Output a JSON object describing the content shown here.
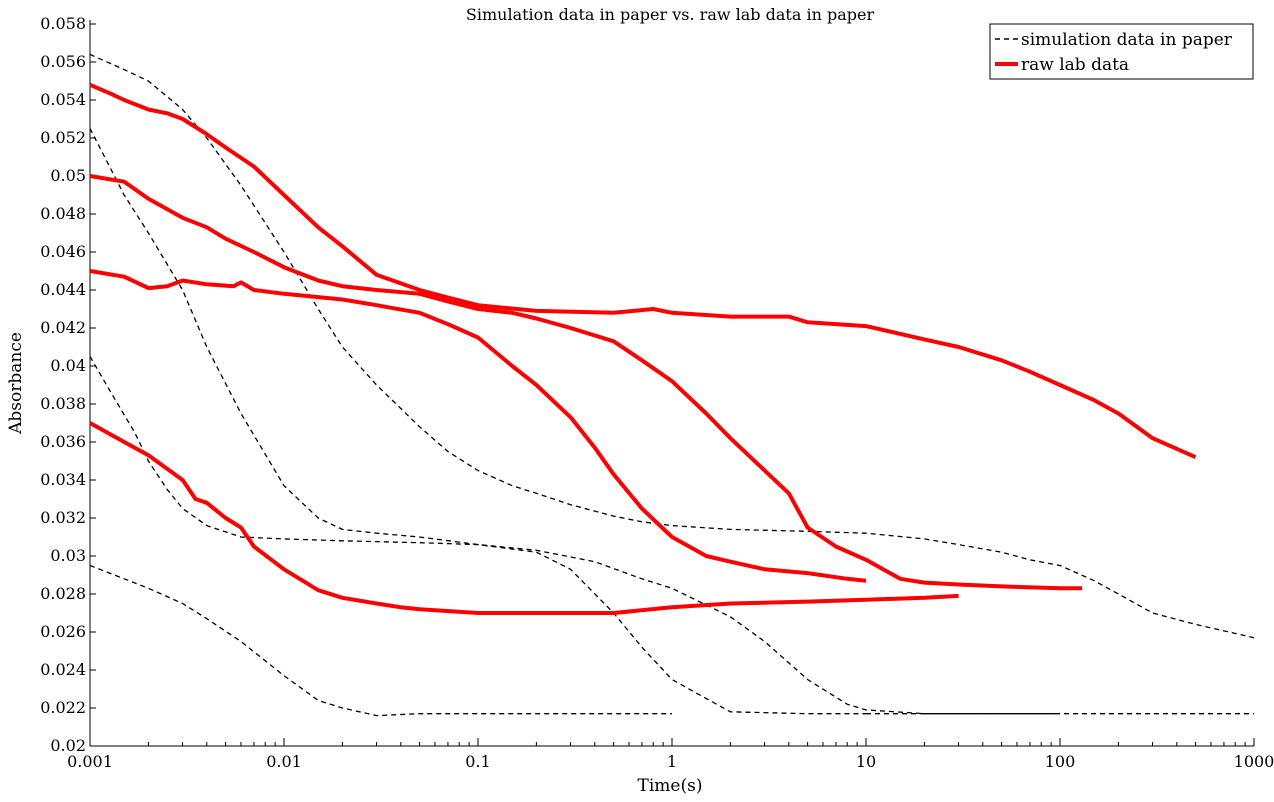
{
  "chart_data": {
    "type": "line",
    "title": "Simulation data in paper vs. raw lab data in paper",
    "xlabel": "Time(s)",
    "ylabel": "Absorbance",
    "xscale": "log",
    "xlim": [
      0.001,
      1000
    ],
    "ylim": [
      0.02,
      0.058
    ],
    "x_tick_labels": [
      "0.001",
      "0.01",
      "0.1",
      "1",
      "10",
      "100",
      "1000"
    ],
    "y_tick_labels": [
      "0.02",
      "0.022",
      "0.024",
      "0.026",
      "0.028",
      "0.03",
      "0.032",
      "0.034",
      "0.036",
      "0.038",
      "0.04",
      "0.042",
      "0.044",
      "0.046",
      "0.048",
      "0.05",
      "0.052",
      "0.054",
      "0.056",
      "0.058"
    ],
    "grid": false,
    "legend_position": "top-right",
    "legend": [
      {
        "label": "simulation data in paper",
        "style": "dashed",
        "color": "#000000"
      },
      {
        "label": "raw lab data",
        "style": "solid",
        "color": "#ff0000"
      }
    ],
    "series": [
      {
        "group": "simulation data in paper",
        "color": "#000000",
        "style": "dashed",
        "points": [
          [
            0.001,
            0.0295
          ],
          [
            0.0015,
            0.0288
          ],
          [
            0.002,
            0.0283
          ],
          [
            0.003,
            0.0275
          ],
          [
            0.004,
            0.0267
          ],
          [
            0.006,
            0.0255
          ],
          [
            0.01,
            0.0237
          ],
          [
            0.015,
            0.0224
          ],
          [
            0.02,
            0.022
          ],
          [
            0.03,
            0.0216
          ],
          [
            0.05,
            0.0217
          ],
          [
            0.1,
            0.0217
          ],
          [
            0.5,
            0.0217
          ],
          [
            1,
            0.0217
          ]
        ]
      },
      {
        "group": "simulation data in paper",
        "color": "#000000",
        "style": "dashed",
        "points": [
          [
            0.001,
            0.0405
          ],
          [
            0.0013,
            0.0385
          ],
          [
            0.0017,
            0.0365
          ],
          [
            0.002,
            0.035
          ],
          [
            0.0025,
            0.0335
          ],
          [
            0.003,
            0.0325
          ],
          [
            0.004,
            0.0316
          ],
          [
            0.006,
            0.031
          ],
          [
            0.01,
            0.0309
          ],
          [
            0.02,
            0.0308
          ],
          [
            0.05,
            0.0307
          ],
          [
            0.1,
            0.0306
          ],
          [
            0.2,
            0.0302
          ],
          [
            0.3,
            0.0293
          ],
          [
            0.5,
            0.027
          ],
          [
            0.7,
            0.0252
          ],
          [
            1,
            0.0235
          ],
          [
            1.5,
            0.0225
          ],
          [
            2,
            0.0218
          ],
          [
            5,
            0.0217
          ],
          [
            10,
            0.0217
          ]
        ]
      },
      {
        "group": "simulation data in paper",
        "color": "#000000",
        "style": "dashed",
        "points": [
          [
            0.001,
            0.0525
          ],
          [
            0.0015,
            0.049
          ],
          [
            0.002,
            0.047
          ],
          [
            0.003,
            0.044
          ],
          [
            0.004,
            0.041
          ],
          [
            0.006,
            0.0375
          ],
          [
            0.01,
            0.0337
          ],
          [
            0.015,
            0.032
          ],
          [
            0.02,
            0.0314
          ],
          [
            0.03,
            0.0312
          ],
          [
            0.05,
            0.031
          ],
          [
            0.1,
            0.0306
          ],
          [
            0.2,
            0.0303
          ],
          [
            0.4,
            0.0297
          ],
          [
            0.7,
            0.0288
          ],
          [
            1,
            0.0283
          ],
          [
            2,
            0.0268
          ],
          [
            3,
            0.0255
          ],
          [
            5,
            0.0235
          ],
          [
            8,
            0.0222
          ],
          [
            10,
            0.0219
          ],
          [
            20,
            0.0217
          ],
          [
            50,
            0.0217
          ],
          [
            100,
            0.0217
          ]
        ]
      },
      {
        "group": "simulation data in paper",
        "color": "#000000",
        "style": "dashed",
        "points": [
          [
            0.001,
            0.0564
          ],
          [
            0.0015,
            0.0556
          ],
          [
            0.002,
            0.055
          ],
          [
            0.003,
            0.0535
          ],
          [
            0.004,
            0.052
          ],
          [
            0.006,
            0.0495
          ],
          [
            0.01,
            0.046
          ],
          [
            0.015,
            0.043
          ],
          [
            0.02,
            0.041
          ],
          [
            0.03,
            0.039
          ],
          [
            0.05,
            0.0368
          ],
          [
            0.07,
            0.0355
          ],
          [
            0.1,
            0.0345
          ],
          [
            0.15,
            0.0337
          ],
          [
            0.2,
            0.0333
          ],
          [
            0.3,
            0.0327
          ],
          [
            0.5,
            0.0321
          ],
          [
            0.7,
            0.0318
          ],
          [
            1,
            0.0316
          ],
          [
            2,
            0.0314
          ],
          [
            5,
            0.0313
          ],
          [
            10,
            0.0312
          ],
          [
            20,
            0.0309
          ],
          [
            30,
            0.0306
          ],
          [
            50,
            0.0302
          ],
          [
            70,
            0.0298
          ],
          [
            100,
            0.0295
          ],
          [
            150,
            0.0287
          ],
          [
            200,
            0.028
          ],
          [
            300,
            0.027
          ],
          [
            500,
            0.0264
          ],
          [
            1000,
            0.0257
          ]
        ]
      },
      {
        "group": "simulation data in paper",
        "color": "#000000",
        "style": "dashed",
        "points": [
          [
            10,
            0.0217
          ],
          [
            100,
            0.0217
          ],
          [
            1000,
            0.0217
          ]
        ]
      },
      {
        "group": "raw lab data",
        "color": "#ff0000",
        "style": "solid",
        "points": [
          [
            0.001,
            0.037
          ],
          [
            0.0015,
            0.036
          ],
          [
            0.002,
            0.0353
          ],
          [
            0.003,
            0.034
          ],
          [
            0.0035,
            0.033
          ],
          [
            0.004,
            0.0328
          ],
          [
            0.005,
            0.032
          ],
          [
            0.006,
            0.0315
          ],
          [
            0.007,
            0.0305
          ],
          [
            0.01,
            0.0293
          ],
          [
            0.015,
            0.0282
          ],
          [
            0.02,
            0.0278
          ],
          [
            0.03,
            0.0275
          ],
          [
            0.04,
            0.0273
          ],
          [
            0.05,
            0.0272
          ],
          [
            0.1,
            0.027
          ],
          [
            0.2,
            0.027
          ],
          [
            0.5,
            0.027
          ],
          [
            1,
            0.0273
          ],
          [
            2,
            0.0275
          ],
          [
            5,
            0.0276
          ],
          [
            10,
            0.0277
          ],
          [
            20,
            0.0278
          ],
          [
            30,
            0.0279
          ]
        ]
      },
      {
        "group": "raw lab data",
        "color": "#ff0000",
        "style": "solid",
        "points": [
          [
            0.001,
            0.045
          ],
          [
            0.0015,
            0.0447
          ],
          [
            0.002,
            0.0441
          ],
          [
            0.0025,
            0.0442
          ],
          [
            0.003,
            0.0445
          ],
          [
            0.004,
            0.0443
          ],
          [
            0.0055,
            0.0442
          ],
          [
            0.006,
            0.0444
          ],
          [
            0.007,
            0.044
          ],
          [
            0.01,
            0.0438
          ],
          [
            0.02,
            0.0435
          ],
          [
            0.03,
            0.0432
          ],
          [
            0.05,
            0.0428
          ],
          [
            0.07,
            0.0422
          ],
          [
            0.1,
            0.0415
          ],
          [
            0.15,
            0.04
          ],
          [
            0.2,
            0.039
          ],
          [
            0.3,
            0.0373
          ],
          [
            0.4,
            0.0357
          ],
          [
            0.5,
            0.0343
          ],
          [
            0.7,
            0.0325
          ],
          [
            1,
            0.031
          ],
          [
            1.5,
            0.03
          ],
          [
            2,
            0.0297
          ],
          [
            3,
            0.0293
          ],
          [
            5,
            0.0291
          ],
          [
            8,
            0.0288
          ],
          [
            10,
            0.0287
          ]
        ]
      },
      {
        "group": "raw lab data",
        "color": "#ff0000",
        "style": "solid",
        "points": [
          [
            0.001,
            0.05
          ],
          [
            0.0015,
            0.0497
          ],
          [
            0.002,
            0.0488
          ],
          [
            0.003,
            0.0478
          ],
          [
            0.004,
            0.0473
          ],
          [
            0.005,
            0.0467
          ],
          [
            0.007,
            0.046
          ],
          [
            0.01,
            0.0452
          ],
          [
            0.015,
            0.0445
          ],
          [
            0.02,
            0.0442
          ],
          [
            0.03,
            0.044
          ],
          [
            0.05,
            0.0438
          ],
          [
            0.07,
            0.0434
          ],
          [
            0.1,
            0.043
          ],
          [
            0.15,
            0.0428
          ],
          [
            0.2,
            0.0425
          ],
          [
            0.3,
            0.042
          ],
          [
            0.5,
            0.0413
          ],
          [
            0.7,
            0.0403
          ],
          [
            1,
            0.0392
          ],
          [
            1.5,
            0.0375
          ],
          [
            2,
            0.0362
          ],
          [
            3,
            0.0345
          ],
          [
            4,
            0.0333
          ],
          [
            5,
            0.0315
          ],
          [
            7,
            0.0305
          ],
          [
            10,
            0.0298
          ],
          [
            15,
            0.0288
          ],
          [
            20,
            0.0286
          ],
          [
            30,
            0.0285
          ],
          [
            50,
            0.0284
          ],
          [
            100,
            0.0283
          ],
          [
            130,
            0.0283
          ]
        ]
      },
      {
        "group": "raw lab data",
        "color": "#ff0000",
        "style": "solid",
        "points": [
          [
            0.001,
            0.0548
          ],
          [
            0.0013,
            0.0543
          ],
          [
            0.0015,
            0.054
          ],
          [
            0.002,
            0.0535
          ],
          [
            0.0025,
            0.0533
          ],
          [
            0.003,
            0.053
          ],
          [
            0.004,
            0.0522
          ],
          [
            0.005,
            0.0515
          ],
          [
            0.007,
            0.0505
          ],
          [
            0.01,
            0.049
          ],
          [
            0.015,
            0.0473
          ],
          [
            0.02,
            0.0463
          ],
          [
            0.03,
            0.0448
          ],
          [
            0.05,
            0.044
          ],
          [
            0.07,
            0.0436
          ],
          [
            0.1,
            0.0432
          ],
          [
            0.2,
            0.0429
          ],
          [
            0.5,
            0.0428
          ],
          [
            0.8,
            0.043
          ],
          [
            1,
            0.0428
          ],
          [
            2,
            0.0426
          ],
          [
            4,
            0.0426
          ],
          [
            5,
            0.0423
          ],
          [
            10,
            0.0421
          ],
          [
            20,
            0.0414
          ],
          [
            30,
            0.041
          ],
          [
            50,
            0.0403
          ],
          [
            70,
            0.0397
          ],
          [
            100,
            0.039
          ],
          [
            150,
            0.0382
          ],
          [
            200,
            0.0375
          ],
          [
            300,
            0.0362
          ],
          [
            500,
            0.0352
          ]
        ]
      }
    ]
  }
}
